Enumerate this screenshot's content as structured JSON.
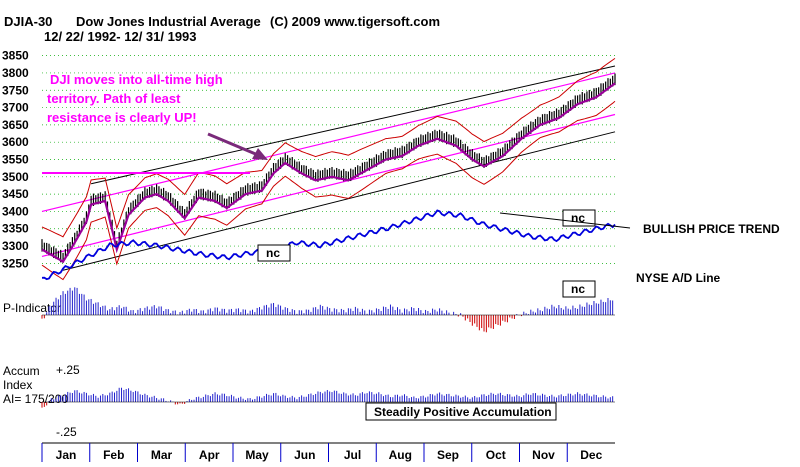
{
  "header": {
    "ticker": "DJIA-30",
    "name": "Dow Jones Industrial Average",
    "copyright": "(C) 2009 www.tigersoft.com",
    "date_range": "12/ 22/ 1992- 12/ 31/ 1993"
  },
  "annotations": {
    "callout_lines": [
      "DJI moves into all-time high",
      "territory.  Path of least",
      "resistance is clearly UP!"
    ],
    "nc": "nc",
    "bullish": "BULLISH PRICE TREND",
    "ad_line": "NYSE A/D Line",
    "accum_box": "Steadily Positive Accumulation"
  },
  "indicator_labels": {
    "p_indicator": "P-Indicator",
    "accum": "Accum",
    "index": "Index",
    "ai": "AI= 175/200",
    "plus": "+.25",
    "minus": "-.25"
  },
  "colors": {
    "price": "#000000",
    "channel_black": "#000000",
    "channel_magenta": "#ff00ff",
    "band_red": "#cc0000",
    "ma_purple": "#990099",
    "ad_line": "#0000dd",
    "pos_bars": "#2222cc",
    "neg_bars": "#cc0000",
    "callout": "#ff00ff"
  },
  "chart_data": {
    "type": "line",
    "ylim": [
      3225,
      3875
    ],
    "yticks": [
      3250,
      3300,
      3350,
      3400,
      3450,
      3500,
      3550,
      3600,
      3650,
      3700,
      3750,
      3800,
      3850
    ],
    "months": [
      "Jan",
      "Feb",
      "Mar",
      "Apr",
      "May",
      "Jun",
      "Jul",
      "Aug",
      "Sep",
      "Oct",
      "Nov",
      "Dec"
    ],
    "price_trace": [
      [
        1,
        3300
      ],
      [
        10,
        3265
      ],
      [
        15,
        3320
      ],
      [
        20,
        3380
      ],
      [
        22,
        3430
      ],
      [
        28,
        3440
      ],
      [
        33,
        3300
      ],
      [
        38,
        3400
      ],
      [
        45,
        3450
      ],
      [
        50,
        3460
      ],
      [
        55,
        3440
      ],
      [
        62,
        3390
      ],
      [
        68,
        3450
      ],
      [
        75,
        3440
      ],
      [
        80,
        3420
      ],
      [
        88,
        3460
      ],
      [
        95,
        3470
      ],
      [
        100,
        3520
      ],
      [
        105,
        3550
      ],
      [
        112,
        3520
      ],
      [
        118,
        3500
      ],
      [
        125,
        3510
      ],
      [
        132,
        3500
      ],
      [
        140,
        3530
      ],
      [
        148,
        3560
      ],
      [
        155,
        3570
      ],
      [
        162,
        3600
      ],
      [
        170,
        3620
      ],
      [
        178,
        3600
      ],
      [
        185,
        3560
      ],
      [
        190,
        3540
      ],
      [
        198,
        3570
      ],
      [
        206,
        3620
      ],
      [
        214,
        3660
      ],
      [
        222,
        3680
      ],
      [
        230,
        3720
      ],
      [
        238,
        3740
      ],
      [
        246,
        3780
      ]
    ],
    "channels": {
      "black": [
        [
          [
            10,
            3230
          ],
          [
            246,
            3630
          ]
        ],
        [
          [
            22,
            3480
          ],
          [
            246,
            3820
          ]
        ]
      ],
      "magenta": [
        [
          [
            1,
            3270
          ],
          [
            246,
            3680
          ]
        ],
        [
          [
            1,
            3400
          ],
          [
            246,
            3800
          ]
        ]
      ]
    },
    "ad_line": [
      [
        1,
        0.55
      ],
      [
        10,
        0.62
      ],
      [
        20,
        0.7
      ],
      [
        30,
        0.78
      ],
      [
        40,
        0.8
      ],
      [
        50,
        0.78
      ],
      [
        60,
        0.75
      ],
      [
        70,
        0.72
      ],
      [
        80,
        0.7
      ],
      [
        90,
        0.73
      ],
      [
        100,
        0.75
      ],
      [
        110,
        0.8
      ],
      [
        120,
        0.78
      ],
      [
        130,
        0.82
      ],
      [
        140,
        0.86
      ],
      [
        150,
        0.9
      ],
      [
        160,
        0.95
      ],
      [
        170,
        1.0
      ],
      [
        180,
        0.98
      ],
      [
        190,
        0.92
      ],
      [
        200,
        0.88
      ],
      [
        210,
        0.84
      ],
      [
        220,
        0.82
      ],
      [
        230,
        0.86
      ],
      [
        240,
        0.9
      ],
      [
        246,
        0.92
      ]
    ],
    "p_indicator": [
      [
        1,
        -5
      ],
      [
        5,
        10
      ],
      [
        10,
        20
      ],
      [
        15,
        25
      ],
      [
        20,
        15
      ],
      [
        25,
        10
      ],
      [
        30,
        5
      ],
      [
        35,
        8
      ],
      [
        40,
        3
      ],
      [
        45,
        6
      ],
      [
        50,
        8
      ],
      [
        55,
        4
      ],
      [
        60,
        2
      ],
      [
        65,
        5
      ],
      [
        70,
        3
      ],
      [
        75,
        6
      ],
      [
        80,
        4
      ],
      [
        85,
        5
      ],
      [
        90,
        3
      ],
      [
        95,
        7
      ],
      [
        100,
        10
      ],
      [
        105,
        6
      ],
      [
        110,
        3
      ],
      [
        115,
        4
      ],
      [
        120,
        8
      ],
      [
        125,
        5
      ],
      [
        130,
        4
      ],
      [
        135,
        6
      ],
      [
        140,
        3
      ],
      [
        145,
        5
      ],
      [
        150,
        8
      ],
      [
        155,
        4
      ],
      [
        160,
        6
      ],
      [
        165,
        3
      ],
      [
        170,
        5
      ],
      [
        175,
        2
      ],
      [
        180,
        0
      ],
      [
        185,
        -8
      ],
      [
        190,
        -15
      ],
      [
        195,
        -10
      ],
      [
        200,
        -5
      ],
      [
        205,
        0
      ],
      [
        210,
        3
      ],
      [
        215,
        5
      ],
      [
        220,
        8
      ],
      [
        225,
        6
      ],
      [
        230,
        7
      ],
      [
        235,
        10
      ],
      [
        240,
        12
      ],
      [
        246,
        15
      ]
    ],
    "accumulation": [
      [
        1,
        -0.05
      ],
      [
        5,
        0.02
      ],
      [
        10,
        0.05
      ],
      [
        15,
        0.08
      ],
      [
        20,
        0.06
      ],
      [
        25,
        0.04
      ],
      [
        30,
        0.06
      ],
      [
        35,
        0.1
      ],
      [
        40,
        0.08
      ],
      [
        45,
        0.05
      ],
      [
        50,
        0.03
      ],
      [
        55,
        0.01
      ],
      [
        60,
        -0.02
      ],
      [
        65,
        0.02
      ],
      [
        70,
        0.04
      ],
      [
        75,
        0.06
      ],
      [
        80,
        0.05
      ],
      [
        85,
        0.03
      ],
      [
        90,
        0.02
      ],
      [
        95,
        0.04
      ],
      [
        100,
        0.06
      ],
      [
        105,
        0.04
      ],
      [
        110,
        0.03
      ],
      [
        115,
        0.05
      ],
      [
        120,
        0.07
      ],
      [
        125,
        0.08
      ],
      [
        130,
        0.06
      ],
      [
        135,
        0.05
      ],
      [
        140,
        0.07
      ],
      [
        145,
        0.06
      ],
      [
        150,
        0.04
      ],
      [
        155,
        0.05
      ],
      [
        160,
        0.03
      ],
      [
        165,
        0.04
      ],
      [
        170,
        0.06
      ],
      [
        175,
        0.05
      ],
      [
        180,
        0.04
      ],
      [
        185,
        0.03
      ],
      [
        190,
        0.05
      ],
      [
        195,
        0.06
      ],
      [
        200,
        0.05
      ],
      [
        205,
        0.04
      ],
      [
        210,
        0.06
      ],
      [
        215,
        0.05
      ],
      [
        220,
        0.04
      ],
      [
        225,
        0.05
      ],
      [
        230,
        0.06
      ],
      [
        235,
        0.05
      ],
      [
        240,
        0.04
      ],
      [
        246,
        0.03
      ]
    ]
  }
}
